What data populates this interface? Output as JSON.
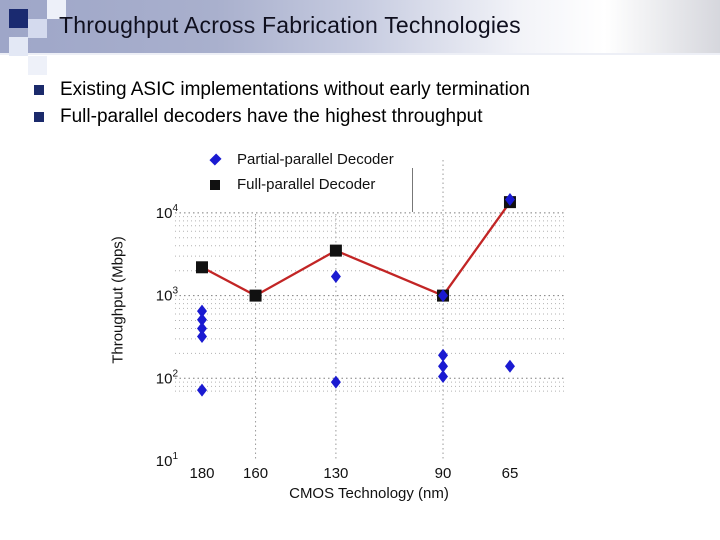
{
  "slide": {
    "title": "Throughput Across Fabrication Technologies",
    "bullets": [
      {
        "text": "Existing ASIC implementations without early termination"
      },
      {
        "text": "Full-parallel decoders have the highest throughput"
      }
    ],
    "colors": {
      "bullet_marker": "#1b2a6b",
      "corner_navy": "#1a2a70",
      "band_left": "#9ea6c8"
    }
  },
  "chart_data": {
    "type": "scatter",
    "title": "",
    "xlabel": "CMOS Technology (nm)",
    "ylabel": "Throughput (Mbps)",
    "x_axis": {
      "reversed": true,
      "tick_labels": [
        "180",
        "160",
        "130",
        "90",
        "65"
      ],
      "tick_values": [
        180,
        160,
        130,
        90,
        65
      ],
      "gridline_values": [
        160,
        130,
        90
      ]
    },
    "y_axis": {
      "scale": "log",
      "tick_base": "10",
      "tick_exponents": [
        4,
        3,
        2,
        1
      ],
      "range_mbps": [
        10,
        40000
      ]
    },
    "grid": true,
    "legend_position": "top-left",
    "series": [
      {
        "name": "Partial-parallel Decoder",
        "marker": "diamond",
        "color": "#1a1ad1",
        "line": false,
        "points_nm_mbps": [
          [
            180,
            650
          ],
          [
            180,
            510
          ],
          [
            180,
            400
          ],
          [
            180,
            320
          ],
          [
            180,
            72
          ],
          [
            130,
            1700
          ],
          [
            130,
            90
          ],
          [
            90,
            1000
          ],
          [
            90,
            190
          ],
          [
            90,
            140
          ],
          [
            90,
            105
          ],
          [
            65,
            14500
          ],
          [
            65,
            140
          ]
        ]
      },
      {
        "name": "Full-parallel Decoder",
        "marker": "square",
        "color": "#111111",
        "line": true,
        "line_color": "#c22525",
        "points_nm_mbps": [
          [
            180,
            2200
          ],
          [
            160,
            1000
          ],
          [
            130,
            3500
          ],
          [
            90,
            1000
          ],
          [
            65,
            13500
          ]
        ]
      }
    ]
  }
}
